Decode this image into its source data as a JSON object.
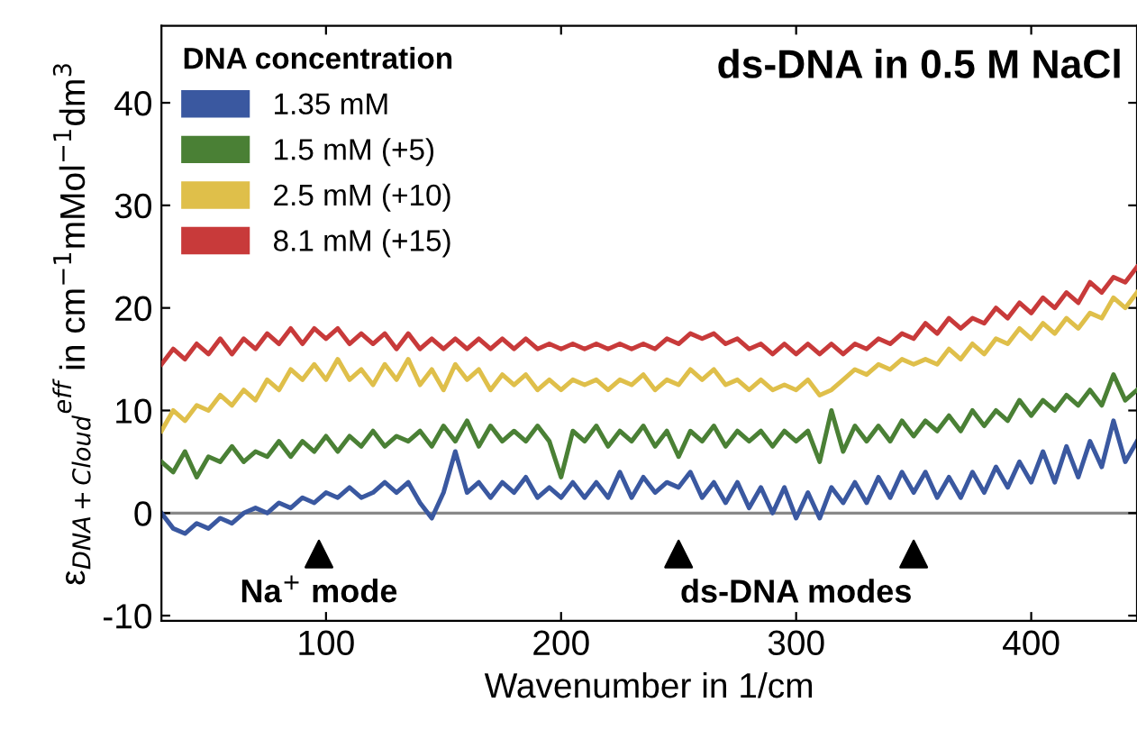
{
  "chart_data": {
    "type": "line",
    "title": "ds-DNA in 0.5 M NaCl",
    "xlabel": "Wavenumber in 1/cm",
    "ylabel": "ε$_{DNA+Cloud}$$^{eff}$ in cm$^{−1}$mMol$^{−1}$dm$^{3}$",
    "legend_title": "DNA concentration",
    "legend": "top left",
    "grid": false,
    "line_style": "solid",
    "x": [
      30,
      35,
      40,
      45,
      50,
      55,
      60,
      65,
      70,
      75,
      80,
      85,
      90,
      95,
      100,
      105,
      110,
      115,
      120,
      125,
      130,
      135,
      140,
      145,
      150,
      155,
      160,
      165,
      170,
      175,
      180,
      185,
      190,
      195,
      200,
      205,
      210,
      215,
      220,
      225,
      230,
      235,
      240,
      245,
      250,
      255,
      260,
      265,
      270,
      275,
      280,
      285,
      290,
      295,
      300,
      305,
      310,
      315,
      320,
      325,
      330,
      335,
      340,
      345,
      350,
      355,
      360,
      365,
      370,
      375,
      380,
      385,
      390,
      395,
      400,
      405,
      410,
      415,
      420,
      425,
      430,
      435,
      440,
      445
    ],
    "xlim": [
      30,
      445
    ],
    "xticks": [
      100,
      200,
      300,
      400
    ],
    "ylim": [
      -10.5,
      47.5
    ],
    "yticks": [
      -10,
      0,
      10,
      20,
      30,
      40
    ],
    "ref_lines": [
      {
        "axis": "y",
        "value": 0,
        "color": "#888888"
      }
    ],
    "series": [
      {
        "name": "1.35 mM",
        "color": "#3a58a0",
        "values": [
          0,
          -1.5,
          -2,
          -1,
          -1.5,
          -0.5,
          -1,
          0,
          0.5,
          0,
          1,
          0.5,
          1.5,
          1,
          2,
          1.5,
          2.5,
          1.5,
          2,
          3,
          2,
          3,
          1,
          -0.5,
          2,
          6,
          2,
          3,
          1.5,
          3,
          2,
          3.5,
          1.5,
          2.5,
          1.5,
          3,
          1.5,
          3,
          1.5,
          4,
          1.5,
          3.5,
          2,
          3,
          2.5,
          4,
          1.5,
          3,
          1,
          3,
          0.5,
          2.5,
          0,
          2.5,
          -0.5,
          2,
          -0.5,
          2.5,
          1,
          3,
          1,
          3.5,
          1.5,
          4,
          2,
          4,
          1.5,
          3.5,
          1.5,
          4,
          2,
          4.5,
          2.5,
          5,
          3,
          6,
          3,
          6.5,
          3.5,
          7,
          4.5,
          9,
          5,
          7
        ]
      },
      {
        "name": "1.5 mM (+5)",
        "color": "#4a8035",
        "values": [
          5,
          4,
          6,
          3.5,
          5.5,
          5,
          6.5,
          5,
          6,
          5.5,
          7,
          5.5,
          7,
          6,
          7.5,
          6,
          7.5,
          6.5,
          8,
          6.5,
          7.5,
          7,
          8,
          6.5,
          8.5,
          7,
          9,
          6.5,
          8.5,
          7,
          8,
          7,
          8.5,
          7,
          3.5,
          8,
          7,
          8.5,
          6.5,
          8,
          7,
          8.5,
          6.5,
          8,
          5.5,
          8,
          7,
          8.5,
          6.5,
          8,
          7,
          8,
          6.5,
          8,
          7,
          8,
          5,
          10,
          6,
          8.5,
          7,
          8.5,
          7,
          9,
          7.5,
          9,
          8,
          9.5,
          8,
          10,
          8.5,
          10,
          9,
          11,
          9.5,
          11,
          10,
          11.5,
          10.5,
          12,
          10.5,
          13.5,
          11,
          12
        ]
      },
      {
        "name": "2.5 mM (+10)",
        "color": "#dfbf4a",
        "values": [
          8,
          10,
          9,
          10.5,
          10,
          11.5,
          10.5,
          12,
          11,
          13,
          12,
          14,
          13,
          14.5,
          13,
          15,
          13,
          14,
          12.5,
          14.5,
          13,
          15,
          12.5,
          14,
          12,
          14.5,
          13,
          14,
          12,
          13.5,
          12.5,
          13.5,
          12,
          13,
          12,
          13,
          12.5,
          13,
          12,
          13,
          12.5,
          13.5,
          12,
          13,
          12.5,
          14,
          13,
          14,
          12.5,
          13,
          12,
          13,
          12,
          12.5,
          12,
          13,
          11.5,
          12,
          13,
          14,
          13.5,
          14.5,
          14,
          15,
          14.5,
          15,
          14.5,
          16,
          15,
          16.5,
          15.5,
          17,
          16.5,
          18,
          17,
          18.5,
          17.5,
          19,
          18,
          19.5,
          19,
          21,
          20,
          21.5
        ]
      },
      {
        "name": "8.1 mM (+15)",
        "color": "#c83a3a",
        "values": [
          14.5,
          16,
          15,
          16.5,
          15.5,
          17,
          15.5,
          17,
          16,
          17.5,
          16.5,
          18,
          16.5,
          18,
          17,
          18,
          16.5,
          17.5,
          16.5,
          17.5,
          16,
          17.5,
          16,
          17,
          16,
          17,
          16,
          17,
          16,
          17,
          16,
          17,
          16,
          16.5,
          16,
          16.5,
          16,
          16.5,
          16,
          16.5,
          16,
          16.5,
          16,
          17,
          16.5,
          17.5,
          17,
          17.5,
          16.5,
          17,
          16,
          16.5,
          15.5,
          16.5,
          15.5,
          16.5,
          15.5,
          16.5,
          15.5,
          16.5,
          16,
          17,
          16.5,
          17.5,
          17,
          18.5,
          17.5,
          19,
          18,
          19,
          18.5,
          20,
          19,
          20.5,
          19.5,
          21,
          20,
          21.5,
          20.5,
          22.5,
          21.5,
          23,
          22.5,
          24
        ]
      },
      {
        "type": "scatter",
        "x": [
          97,
          250,
          350
        ],
        "values": [
          -4,
          -4,
          -4
        ],
        "color": "#000000",
        "marker": "triangle"
      }
    ],
    "annotations": [
      "Na$^{+}$ mode",
      "ds-DNA modes"
    ]
  }
}
